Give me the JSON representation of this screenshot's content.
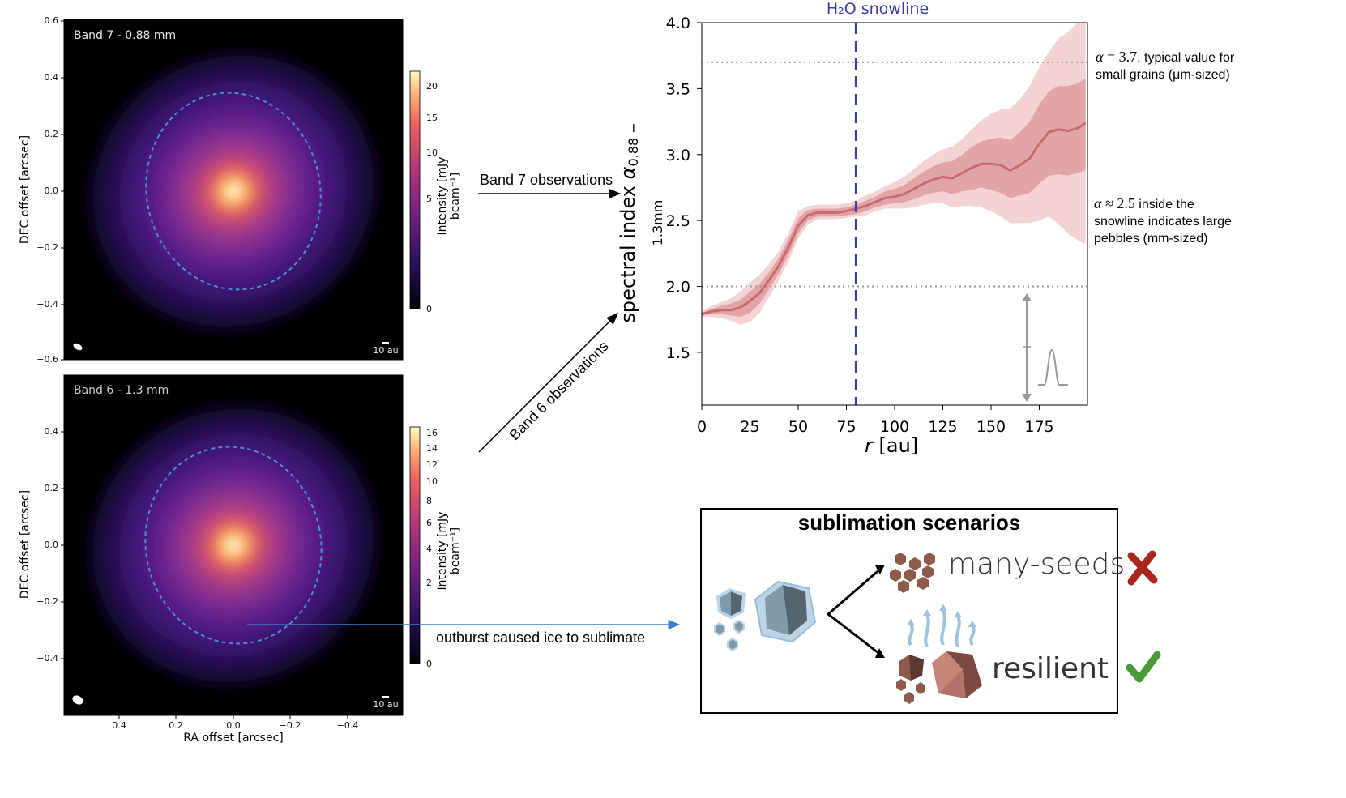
{
  "top_map": {
    "band_label": "Band 7 - 0.88 mm",
    "scale_label": "10 au",
    "ylabel": "DEC offset [arcsec]",
    "yticks": [
      "0.6",
      "0.4",
      "0.2",
      "0.0",
      "−0.2",
      "−0.4",
      "−0.6"
    ],
    "colorbar_label": "Intensity [mJy beam⁻¹]",
    "colorbar_ticks": [
      "20",
      "15",
      "10",
      "5",
      "0"
    ]
  },
  "bottom_map": {
    "band_label": "Band 6 - 1.3 mm",
    "scale_label": "10 au",
    "ylabel": "DEC offset [arcsec]",
    "xlabel": "RA offset [arcsec]",
    "yticks": [
      "0.4",
      "0.2",
      "0.0",
      "−0.2",
      "−0.4"
    ],
    "xticks": [
      "0.4",
      "0.2",
      "0.0",
      "−0.2",
      "−0.4"
    ],
    "colorbar_label": "Intensity [mJy beam⁻¹]",
    "colorbar_ticks": [
      "16",
      "14",
      "12",
      "10",
      "8",
      "6",
      "4",
      "2",
      "0"
    ]
  },
  "arrows": {
    "band7": "Band 7 observations",
    "band6": "Band 6 observations",
    "outburst": "outburst caused ice to sublimate"
  },
  "chart_data": {
    "type": "line",
    "title": "",
    "xlabel": "r [au]",
    "ylabel": "spectral index α 0.88 − 1.3mm",
    "xlim": [
      0,
      200
    ],
    "ylim": [
      1.1,
      4.0
    ],
    "xticks": [
      "0",
      "25",
      "50",
      "75",
      "100",
      "125",
      "150",
      "175"
    ],
    "yticks": [
      "1.5",
      "2.0",
      "2.5",
      "3.0",
      "3.5",
      "4.0"
    ],
    "snowline": {
      "label": "H₂O snowline",
      "x": 80,
      "color": "#3a3f9e"
    },
    "reference_lines": [
      3.7,
      2.0
    ],
    "annotations": [
      "α = 3.7, typical value for small grains (μm-sized)",
      "α ≈ 2.5 inside the snowline indicates large pebbles (mm-sized)"
    ],
    "series": [
      {
        "color": "#c96a6e",
        "x": [
          0,
          5,
          10,
          15,
          20,
          25,
          30,
          35,
          40,
          45,
          50,
          55,
          60,
          65,
          70,
          75,
          80,
          85,
          90,
          95,
          100,
          105,
          110,
          115,
          120,
          125,
          130,
          135,
          140,
          145,
          150,
          155,
          160,
          165,
          170,
          175,
          180,
          185,
          190,
          195,
          199
        ],
        "y": [
          1.79,
          1.81,
          1.82,
          1.82,
          1.84,
          1.89,
          1.95,
          2.05,
          2.16,
          2.3,
          2.46,
          2.54,
          2.56,
          2.56,
          2.56,
          2.57,
          2.59,
          2.61,
          2.64,
          2.67,
          2.68,
          2.7,
          2.74,
          2.78,
          2.81,
          2.83,
          2.82,
          2.86,
          2.9,
          2.93,
          2.93,
          2.92,
          2.88,
          2.92,
          2.97,
          3.08,
          3.17,
          3.19,
          3.18,
          3.2,
          3.24
        ],
        "lo1": [
          1.78,
          1.79,
          1.79,
          1.78,
          1.77,
          1.8,
          1.87,
          1.98,
          2.1,
          2.24,
          2.4,
          2.5,
          2.53,
          2.53,
          2.53,
          2.54,
          2.55,
          2.57,
          2.6,
          2.62,
          2.63,
          2.64,
          2.66,
          2.69,
          2.71,
          2.72,
          2.7,
          2.72,
          2.73,
          2.75,
          2.73,
          2.71,
          2.67,
          2.69,
          2.71,
          2.78,
          2.84,
          2.85,
          2.84,
          2.86,
          2.88
        ],
        "hi1": [
          1.8,
          1.83,
          1.85,
          1.87,
          1.9,
          1.96,
          2.02,
          2.11,
          2.22,
          2.36,
          2.52,
          2.58,
          2.59,
          2.59,
          2.59,
          2.6,
          2.62,
          2.65,
          2.68,
          2.72,
          2.74,
          2.77,
          2.82,
          2.87,
          2.91,
          2.94,
          2.95,
          3.0,
          3.06,
          3.1,
          3.12,
          3.13,
          3.11,
          3.17,
          3.25,
          3.38,
          3.48,
          3.52,
          3.52,
          3.54,
          3.58
        ],
        "lo2": [
          1.77,
          1.77,
          1.76,
          1.74,
          1.71,
          1.73,
          1.8,
          1.92,
          2.05,
          2.19,
          2.36,
          2.47,
          2.51,
          2.51,
          2.51,
          2.52,
          2.53,
          2.54,
          2.57,
          2.59,
          2.59,
          2.59,
          2.6,
          2.62,
          2.63,
          2.63,
          2.6,
          2.61,
          2.61,
          2.6,
          2.57,
          2.53,
          2.48,
          2.48,
          2.48,
          2.5,
          2.53,
          2.47,
          2.4,
          2.35,
          2.32
        ],
        "hi2": [
          1.81,
          1.85,
          1.88,
          1.91,
          1.96,
          2.03,
          2.09,
          2.17,
          2.27,
          2.41,
          2.57,
          2.61,
          2.62,
          2.62,
          2.62,
          2.63,
          2.65,
          2.69,
          2.72,
          2.76,
          2.79,
          2.83,
          2.89,
          2.95,
          3.0,
          3.04,
          3.06,
          3.12,
          3.19,
          3.26,
          3.31,
          3.34,
          3.35,
          3.42,
          3.52,
          3.66,
          3.78,
          3.88,
          3.93,
          4.0,
          4.05
        ]
      }
    ]
  },
  "scenarios": {
    "title": "sublimation scenarios",
    "option_a": "many-seeds",
    "option_b": "resilient",
    "rejected_color": "#a8261b",
    "accepted_color": "#4a9a3a"
  }
}
